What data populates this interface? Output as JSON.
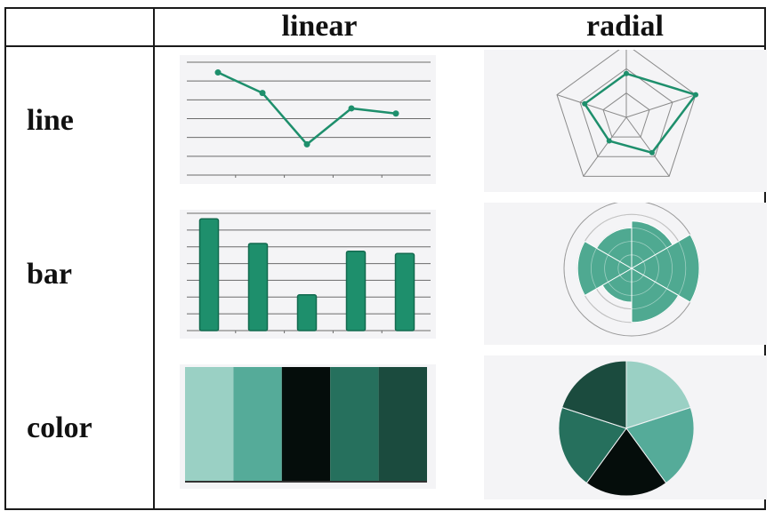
{
  "table": {
    "corner": "",
    "col_headers": [
      "linear",
      "radial"
    ],
    "row_headers": [
      "line",
      "bar",
      "color"
    ]
  },
  "colors": {
    "primary": "#1e8f6c",
    "swatches": [
      "#9ad0c4",
      "#55ab99",
      "#050d0b",
      "#26705d",
      "#1b4b3e"
    ],
    "grid": "#6b6b6b",
    "panel_bg": "#f4f4f6"
  },
  "chart_data": [
    {
      "type": "line",
      "coordinate": "linear",
      "values": [
        10,
        8,
        3,
        6.5,
        6
      ],
      "ylim": [
        0,
        11
      ],
      "grid": true
    },
    {
      "type": "line",
      "coordinate": "radial",
      "values": [
        6,
        10,
        6,
        4,
        6
      ],
      "rmax": 10,
      "grid": true
    },
    {
      "type": "bar",
      "coordinate": "linear",
      "values": [
        10,
        7.8,
        3.2,
        7.1,
        6.9
      ],
      "ylim": [
        0,
        10.5
      ],
      "grid": true
    },
    {
      "type": "bar",
      "coordinate": "radial",
      "values": [
        7,
        10,
        8,
        5,
        8,
        6
      ],
      "rmax": 10,
      "grid": true
    },
    {
      "type": "color",
      "coordinate": "linear",
      "values": [
        1,
        1,
        1,
        1,
        1
      ]
    },
    {
      "type": "color",
      "coordinate": "radial",
      "values": [
        1,
        1,
        1,
        1,
        1
      ]
    }
  ]
}
